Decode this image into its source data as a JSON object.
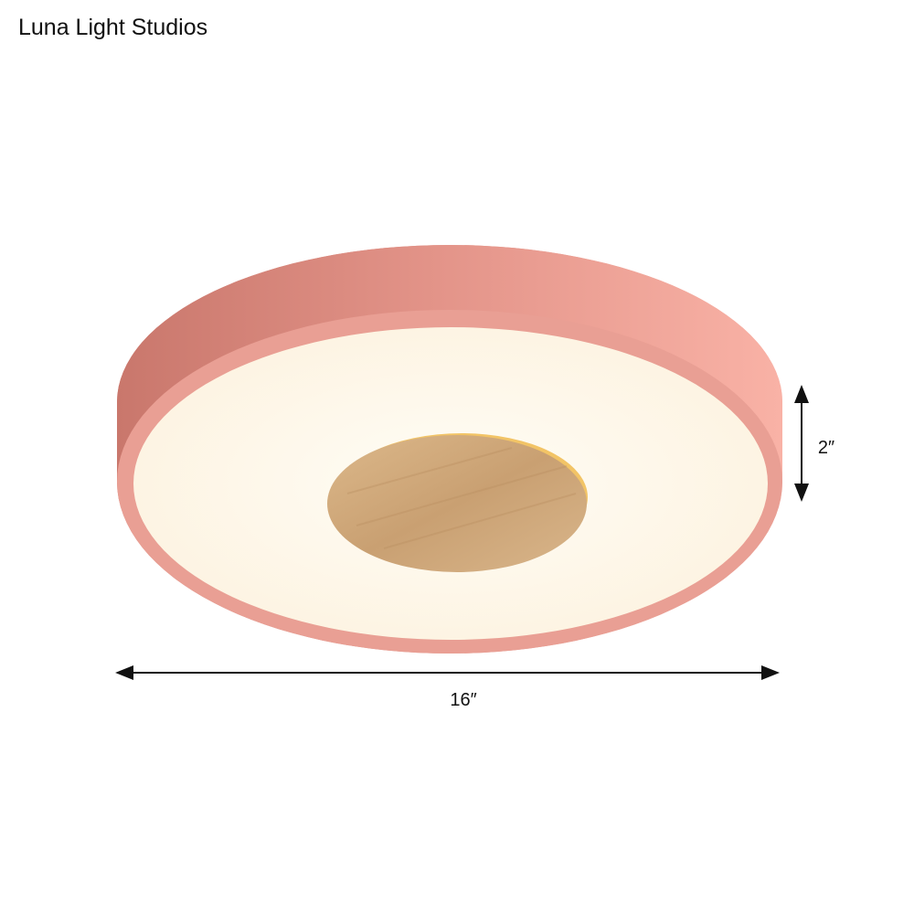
{
  "brand": {
    "name": "Luna Light Studios"
  },
  "product": {
    "body_color": "#e89a8f",
    "diffuser_color": "#fffaf0",
    "center_accent": "wood",
    "width_label": "16″",
    "height_label": "2″"
  }
}
